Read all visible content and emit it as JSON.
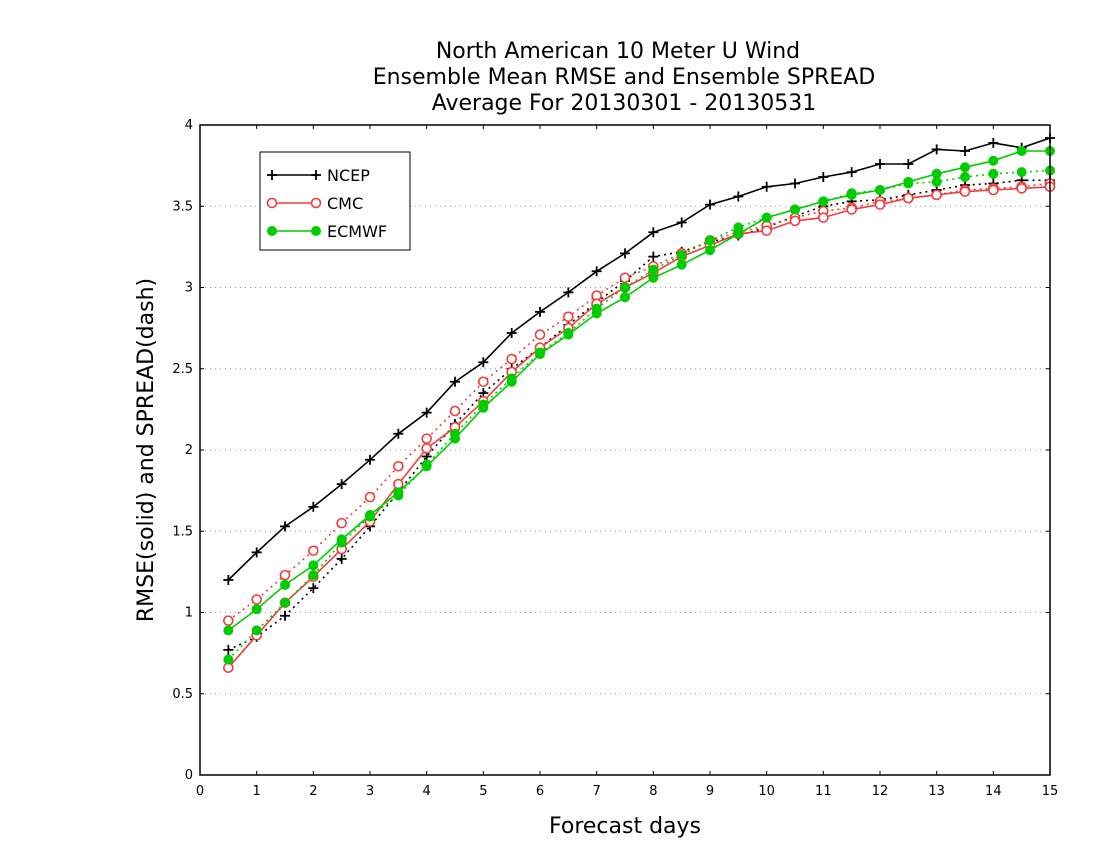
{
  "chart_data": {
    "type": "line",
    "title_lines": [
      "North American 10 Meter U Wind",
      "Ensemble Mean RMSE and Ensemble SPREAD",
      "Average For 20130301 - 20130531"
    ],
    "xlabel": "Forecast days",
    "ylabel": "RMSE(solid) and SPREAD(dash)",
    "xlim": [
      0,
      15
    ],
    "ylim": [
      0,
      4
    ],
    "xticks": [
      0,
      1,
      2,
      3,
      4,
      5,
      6,
      7,
      8,
      9,
      10,
      11,
      12,
      13,
      14,
      15
    ],
    "yticks": [
      0,
      0.5,
      1,
      1.5,
      2,
      2.5,
      3,
      3.5,
      4
    ],
    "ytick_labels": [
      "0",
      "0.5",
      "1",
      "1.5",
      "2",
      "2.5",
      "3",
      "3.5",
      "4"
    ],
    "grid": "horizontal dotted",
    "legend_position": "top-left",
    "x": [
      0.5,
      1,
      1.5,
      2,
      2.5,
      3,
      3.5,
      4,
      4.5,
      5,
      5.5,
      6,
      6.5,
      7,
      7.5,
      8,
      8.5,
      9,
      9.5,
      10,
      10.5,
      11,
      11.5,
      12,
      12.5,
      13,
      13.5,
      14,
      14.5,
      15
    ],
    "series": [
      {
        "name": "NCEP",
        "color": "#000000",
        "marker": "plus",
        "rmse": [
          1.2,
          1.37,
          1.53,
          1.65,
          1.79,
          1.94,
          2.1,
          2.23,
          2.42,
          2.54,
          2.72,
          2.85,
          2.97,
          3.1,
          3.21,
          3.34,
          3.4,
          3.51,
          3.56,
          3.62,
          3.64,
          3.68,
          3.71,
          3.76,
          3.76,
          3.85,
          3.84,
          3.89,
          3.86,
          3.92
        ],
        "spread": [
          0.77,
          0.85,
          0.98,
          1.15,
          1.33,
          1.53,
          1.74,
          1.96,
          2.16,
          2.35,
          2.5,
          2.63,
          2.77,
          2.91,
          3.04,
          3.19,
          3.22,
          3.28,
          3.32,
          3.37,
          3.44,
          3.5,
          3.53,
          3.54,
          3.57,
          3.6,
          3.63,
          3.64,
          3.66,
          3.66
        ]
      },
      {
        "name": "CMC",
        "color": "#f03c3c",
        "marker": "open-circle",
        "rmse": [
          0.66,
          0.86,
          1.06,
          1.22,
          1.39,
          1.56,
          1.79,
          2.01,
          2.14,
          2.3,
          2.48,
          2.63,
          2.75,
          2.9,
          3.0,
          3.09,
          3.19,
          3.26,
          3.33,
          3.35,
          3.41,
          3.43,
          3.48,
          3.51,
          3.55,
          3.57,
          3.59,
          3.6,
          3.61,
          3.62
        ],
        "spread": [
          0.95,
          1.08,
          1.23,
          1.38,
          1.55,
          1.71,
          1.9,
          2.07,
          2.24,
          2.42,
          2.56,
          2.71,
          2.82,
          2.95,
          3.06,
          3.13,
          3.21,
          3.29,
          3.34,
          3.38,
          3.43,
          3.47,
          3.49,
          3.53,
          3.55,
          3.57,
          3.6,
          3.61,
          3.62,
          3.64
        ]
      },
      {
        "name": "ECMWF",
        "color": "#00cc00",
        "marker": "filled-circle",
        "rmse": [
          0.89,
          1.02,
          1.17,
          1.29,
          1.45,
          1.6,
          1.74,
          1.9,
          2.07,
          2.26,
          2.42,
          2.59,
          2.71,
          2.84,
          2.94,
          3.06,
          3.14,
          3.23,
          3.33,
          3.43,
          3.48,
          3.53,
          3.57,
          3.6,
          3.65,
          3.7,
          3.74,
          3.78,
          3.84,
          3.84
        ],
        "spread": [
          0.71,
          0.89,
          1.06,
          1.23,
          1.43,
          1.59,
          1.72,
          1.91,
          2.1,
          2.28,
          2.44,
          2.6,
          2.72,
          2.87,
          3.0,
          3.11,
          3.2,
          3.29,
          3.37,
          3.43,
          3.48,
          3.53,
          3.58,
          3.6,
          3.64,
          3.65,
          3.68,
          3.7,
          3.71,
          3.72
        ]
      }
    ]
  }
}
